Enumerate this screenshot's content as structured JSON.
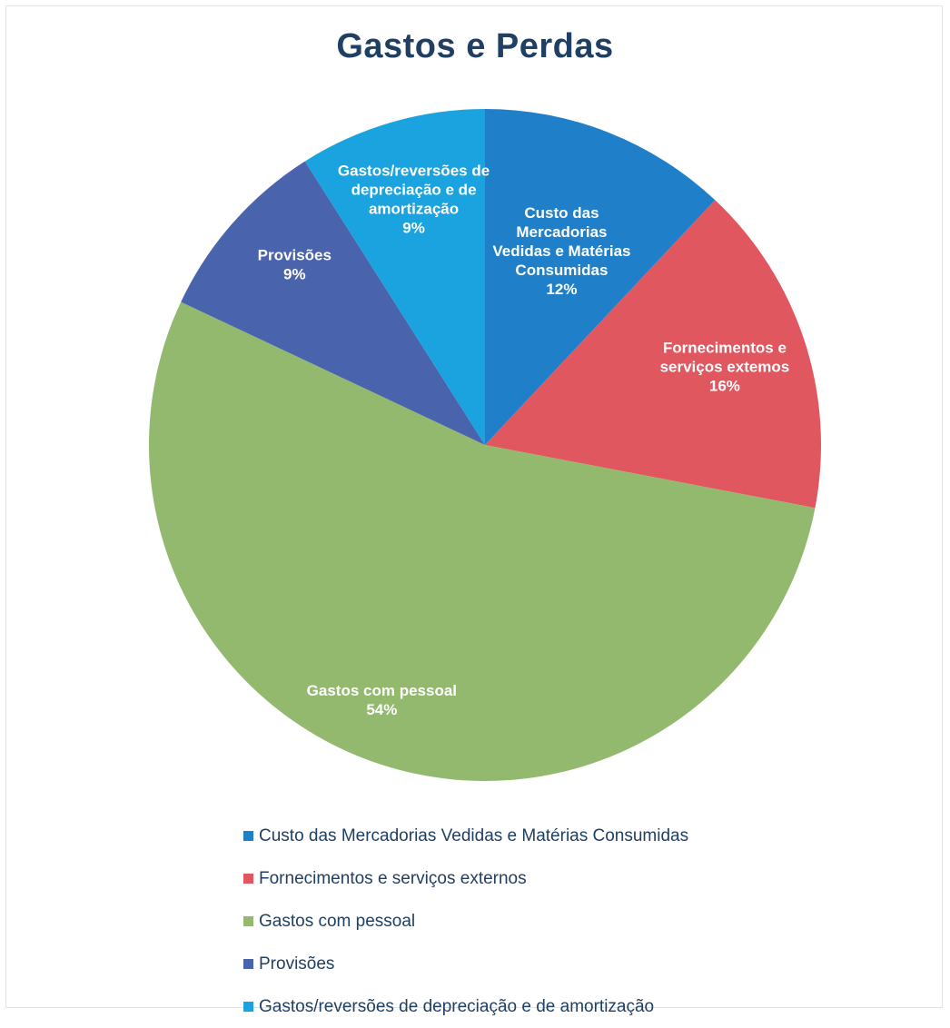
{
  "chart_data": {
    "type": "pie",
    "title": "Gastos e Perdas",
    "start_angle_deg": 0,
    "direction": "clockwise",
    "slices": [
      {
        "name": "Custo das Mercadorias Vedidas e Matérias Consumidas",
        "value": 12,
        "percent_label": "12%",
        "label_lines": [
          "Custo das",
          "Mercadorias",
          "Vedidas e Matérias",
          "Consumidas"
        ],
        "color": "#1f7fc9"
      },
      {
        "name": "Fornecimentos e serviços externos",
        "value": 16,
        "percent_label": "16%",
        "label_lines": [
          "Fornecimentos e",
          "serviços extemos"
        ],
        "color": "#e0575f"
      },
      {
        "name": "Gastos com pessoal",
        "value": 54,
        "percent_label": "54%",
        "label_lines": [
          "Gastos com pessoal"
        ],
        "color": "#93b96f"
      },
      {
        "name": "Provisões",
        "value": 9,
        "percent_label": "9%",
        "label_lines": [
          "Provisões"
        ],
        "color": "#4a63ad"
      },
      {
        "name": "Gastos/reversões de depreciação e de amortização",
        "value": 9,
        "percent_label": "9%",
        "label_lines": [
          "Gastos/reversões de",
          "depreciação e de",
          "amortização"
        ],
        "color": "#1aa3de"
      }
    ],
    "legend": {
      "position": "bottom",
      "items": [
        "Custo das Mercadorias Vedidas e Matérias Consumidas",
        "Fornecimentos e serviços externos",
        "Gastos com pessoal",
        "Provisões",
        "Gastos/reversões de depreciação e de amortização"
      ]
    }
  }
}
